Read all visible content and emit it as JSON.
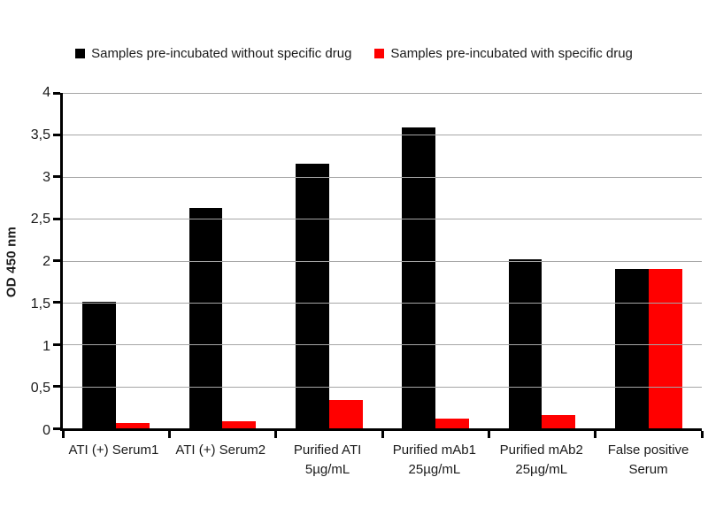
{
  "chart_data": {
    "type": "bar",
    "title": "",
    "ylabel": "OD 450 nm",
    "xlabel": "",
    "ylim": [
      0,
      4
    ],
    "ytick_step": 0.5,
    "ytick_labels": [
      "0",
      "0,5",
      "1",
      "1,5",
      "2",
      "2,5",
      "3",
      "3,5",
      "4"
    ],
    "decimal_separator": ",",
    "grid": "horizontal",
    "gridline_color": "#a6a6a6",
    "axis_color": "#000000",
    "legend_position": "top",
    "categories": [
      "ATI (+) Serum1",
      "ATI (+) Serum2",
      "Purified ATI\n5µg/mL",
      "Purified mAb1\n25µg/mL",
      "Purified mAb2\n25µg/mL",
      "False positive\nSerum"
    ],
    "series": [
      {
        "name": "Samples pre-incubated without specific drug",
        "color": "#000000",
        "values": [
          1.51,
          2.63,
          3.16,
          3.59,
          2.02,
          1.9
        ]
      },
      {
        "name": "Samples pre-incubated with specific drug",
        "color": "#ff0000",
        "values": [
          0.06,
          0.08,
          0.34,
          0.12,
          0.16,
          1.9
        ]
      }
    ]
  }
}
